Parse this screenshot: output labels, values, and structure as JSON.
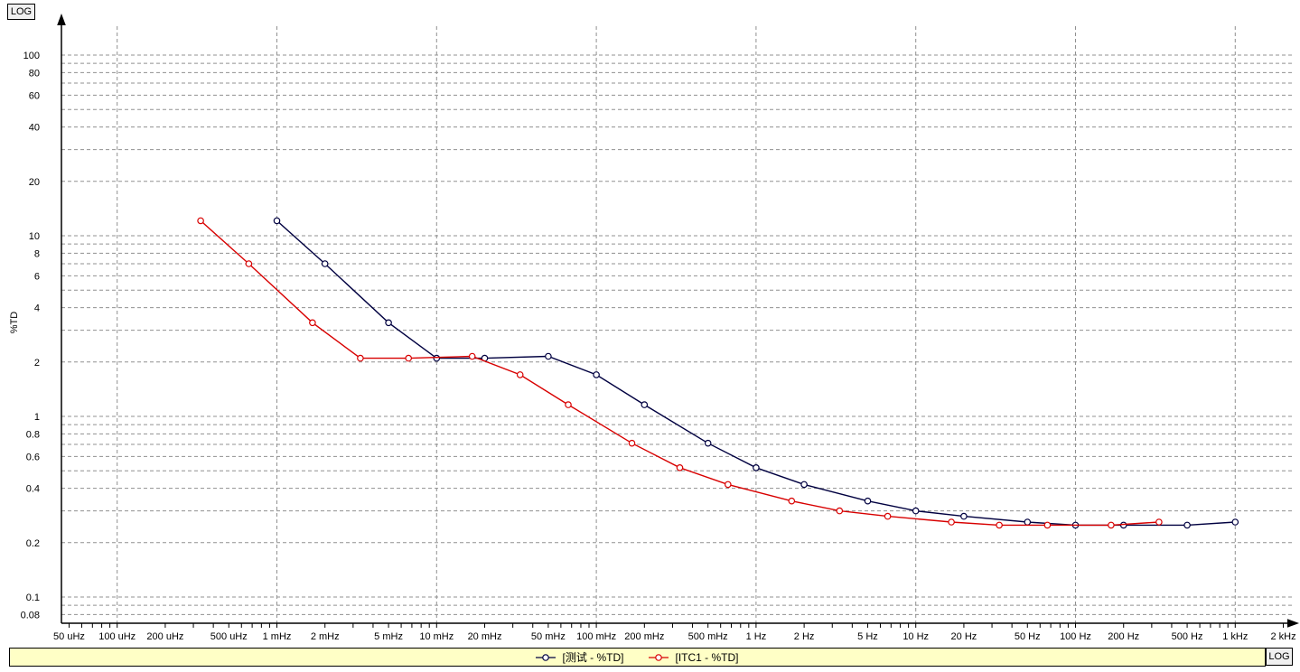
{
  "log_buttons": {
    "top_left": "LOG",
    "bottom_right": "LOG"
  },
  "chart_data": {
    "type": "line",
    "title": "",
    "xlabel": "",
    "ylabel": "%TD",
    "x_scale": "log",
    "y_scale": "log",
    "xlim": [
      5e-05,
      2000
    ],
    "ylim": [
      0.08,
      150
    ],
    "grid": true,
    "grid_style": "dashed gray, log minor lines on y (1-9 per decade), decade lines on x",
    "legend_position": "bottom-bar",
    "x_ticks": [
      {
        "label": "50 uHz",
        "value": 5e-05
      },
      {
        "label": "100 uHz",
        "value": 0.0001
      },
      {
        "label": "200 uHz",
        "value": 0.0002
      },
      {
        "label": "500 uHz",
        "value": 0.0005
      },
      {
        "label": "1 mHz",
        "value": 0.001
      },
      {
        "label": "2 mHz",
        "value": 0.002
      },
      {
        "label": "5 mHz",
        "value": 0.005
      },
      {
        "label": "10 mHz",
        "value": 0.01
      },
      {
        "label": "20 mHz",
        "value": 0.02
      },
      {
        "label": "50 mHz",
        "value": 0.05
      },
      {
        "label": "100 mHz",
        "value": 0.1
      },
      {
        "label": "200 mHz",
        "value": 0.2
      },
      {
        "label": "500 mHz",
        "value": 0.5
      },
      {
        "label": "1 Hz",
        "value": 1
      },
      {
        "label": "2 Hz",
        "value": 2
      },
      {
        "label": "5 Hz",
        "value": 5
      },
      {
        "label": "10 Hz",
        "value": 10
      },
      {
        "label": "20 Hz",
        "value": 20
      },
      {
        "label": "50 Hz",
        "value": 50
      },
      {
        "label": "100 Hz",
        "value": 100
      },
      {
        "label": "200 Hz",
        "value": 200
      },
      {
        "label": "500 Hz",
        "value": 500
      },
      {
        "label": "1 kHz",
        "value": 1000
      },
      {
        "label": "2 kHz",
        "value": 2000
      }
    ],
    "y_ticks": [
      {
        "label": "100",
        "value": 100
      },
      {
        "label": "80",
        "value": 80
      },
      {
        "label": "60",
        "value": 60
      },
      {
        "label": "40",
        "value": 40
      },
      {
        "label": "20",
        "value": 20
      },
      {
        "label": "10",
        "value": 10
      },
      {
        "label": "8",
        "value": 8
      },
      {
        "label": "6",
        "value": 6
      },
      {
        "label": "4",
        "value": 4
      },
      {
        "label": "2",
        "value": 2
      },
      {
        "label": "1",
        "value": 1
      },
      {
        "label": "0.8",
        "value": 0.8
      },
      {
        "label": "0.6",
        "value": 0.6
      },
      {
        "label": "0.4",
        "value": 0.4
      },
      {
        "label": "0.2",
        "value": 0.2
      },
      {
        "label": "0.1",
        "value": 0.1
      },
      {
        "label": "0.08",
        "value": 0.08
      }
    ],
    "series": [
      {
        "name": "[测试 - %TD]",
        "color": "#000040",
        "marker": "circle",
        "x": [
          0.001,
          0.002,
          0.005,
          0.01,
          0.02,
          0.05,
          0.1,
          0.2,
          0.5,
          1,
          2,
          5,
          10,
          20,
          50,
          100,
          200,
          500,
          1000
        ],
        "values": [
          12.1,
          7.0,
          3.3,
          2.1,
          2.1,
          2.15,
          1.7,
          1.16,
          0.71,
          0.52,
          0.42,
          0.34,
          0.3,
          0.28,
          0.26,
          0.25,
          0.25,
          0.25,
          0.26
        ]
      },
      {
        "name": "[ITC1 - %TD]",
        "color": "#d80000",
        "marker": "circle",
        "x": [
          0.000333,
          0.000667,
          0.00167,
          0.00333,
          0.00667,
          0.0167,
          0.0333,
          0.0667,
          0.167,
          0.333,
          0.667,
          1.67,
          3.33,
          6.67,
          16.7,
          33.3,
          66.7,
          167,
          333
        ],
        "values": [
          12.1,
          7.0,
          3.3,
          2.1,
          2.1,
          2.15,
          1.7,
          1.16,
          0.71,
          0.52,
          0.42,
          0.34,
          0.3,
          0.28,
          0.26,
          0.25,
          0.25,
          0.25,
          0.26
        ]
      }
    ]
  }
}
